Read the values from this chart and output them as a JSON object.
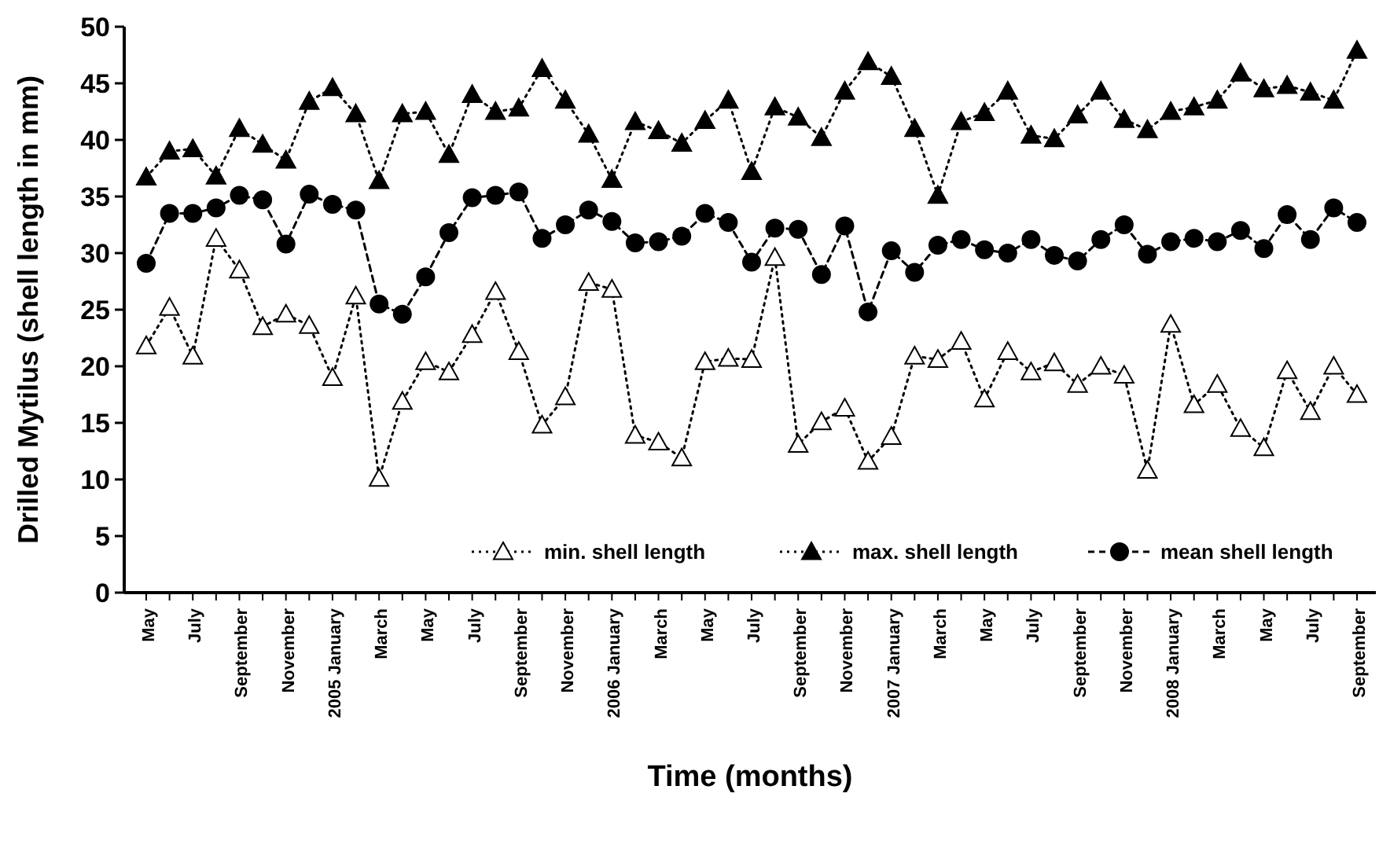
{
  "chart_data": {
    "type": "line",
    "xlabel": "Time (months)",
    "ylabel": "Drilled Mytilus (shell length in mm)",
    "categories": [
      "May",
      null,
      "July",
      null,
      "September",
      null,
      "November",
      null,
      "2005 January",
      null,
      "March",
      null,
      "May",
      null,
      "July",
      null,
      "September",
      null,
      "November",
      null,
      "2006 January",
      null,
      "March",
      null,
      "May",
      null,
      "July",
      null,
      "September",
      null,
      "November",
      null,
      "2007 January",
      null,
      "March",
      null,
      "May",
      null,
      "July",
      null,
      "September",
      null,
      "November",
      null,
      "2008 January",
      null,
      "March",
      null,
      "May",
      null,
      "July",
      null,
      "September"
    ],
    "ylim": [
      0,
      50
    ],
    "yticks": [
      0,
      5,
      10,
      15,
      20,
      25,
      30,
      35,
      40,
      45,
      50
    ],
    "grid": false,
    "legend": "bottom right",
    "series": [
      {
        "name": "min. shell length",
        "color": "#000000",
        "marker": "triangle",
        "line_style": "dotted",
        "values": [
          21.8,
          25.2,
          20.9,
          31.3,
          28.5,
          23.5,
          24.6,
          23.6,
          19.0,
          26.2,
          10.1,
          16.9,
          20.4,
          19.5,
          22.8,
          26.6,
          21.3,
          14.8,
          17.3,
          27.4,
          26.8,
          13.9,
          13.3,
          11.9,
          20.4,
          20.7,
          20.6,
          29.6,
          13.1,
          15.1,
          16.3,
          11.6,
          13.8,
          20.9,
          20.6,
          22.2,
          17.1,
          21.3,
          19.5,
          20.3,
          18.4,
          20.0,
          19.2,
          10.8,
          23.7,
          16.6,
          18.4,
          14.5,
          12.8,
          19.6,
          16.0,
          20.0,
          17.5
        ]
      },
      {
        "name": "max. shell length",
        "color": "#000000",
        "marker": "triangle",
        "line_style": "dotted",
        "values": [
          36.7,
          39.0,
          39.2,
          36.8,
          41.0,
          39.6,
          38.2,
          43.4,
          44.6,
          42.3,
          36.4,
          42.3,
          42.5,
          38.7,
          44.0,
          42.5,
          42.8,
          46.3,
          43.5,
          40.5,
          36.5,
          41.6,
          40.8,
          39.7,
          41.7,
          43.5,
          37.2,
          42.9,
          42.0,
          40.2,
          44.3,
          46.9,
          45.6,
          41.0,
          35.1,
          41.6,
          42.4,
          44.3,
          40.4,
          40.1,
          42.2,
          44.3,
          41.8,
          40.9,
          42.5,
          42.9,
          43.5,
          45.9,
          44.5,
          44.8,
          44.2,
          43.5,
          47.9
        ]
      },
      {
        "name": "mean shell length",
        "color": "#000000",
        "marker": "circle",
        "line_style": "dashed",
        "values": [
          29.1,
          33.5,
          33.5,
          34.0,
          35.1,
          34.7,
          30.8,
          35.2,
          34.3,
          33.8,
          25.5,
          24.6,
          27.9,
          31.8,
          34.9,
          35.1,
          35.4,
          31.3,
          32.5,
          33.8,
          32.8,
          30.9,
          31.0,
          31.5,
          33.5,
          32.7,
          29.2,
          32.2,
          32.1,
          28.1,
          32.4,
          24.8,
          30.2,
          28.3,
          30.7,
          31.2,
          30.3,
          30.0,
          31.2,
          29.8,
          29.3,
          31.2,
          32.5,
          29.9,
          31.0,
          31.3,
          31.0,
          32.0,
          30.4,
          33.4,
          31.2,
          34.0,
          32.7
        ]
      }
    ]
  }
}
